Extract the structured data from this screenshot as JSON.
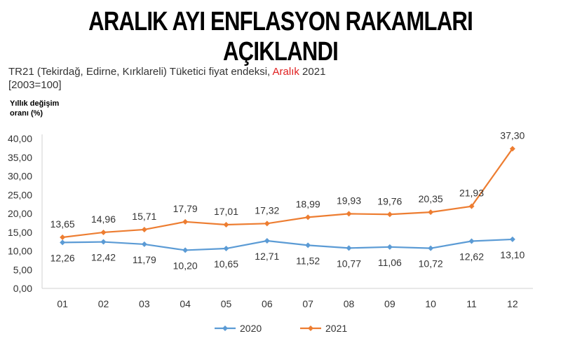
{
  "headline": "ARALIK AYI ENFLASYON RAKAMLARI AÇIKLANDI",
  "chart_data": {
    "type": "line",
    "title_prefix": "TR21 (Tekirdağ, Edirne, Kırklareli) Tüketici fiyat endeksi, ",
    "title_accent": "Aralık",
    "title_suffix": " 2021",
    "title_note": "[2003=100]",
    "ylabel": "Yıllık değişim oranı (%)",
    "xlabel": "",
    "categories": [
      "01",
      "02",
      "03",
      "04",
      "05",
      "06",
      "07",
      "08",
      "09",
      "10",
      "11",
      "12"
    ],
    "ylim": [
      0,
      40
    ],
    "yticks": [
      0,
      5,
      10,
      15,
      20,
      25,
      30,
      35,
      40
    ],
    "ytick_labels": [
      "0,00",
      "5,00",
      "10,00",
      "15,00",
      "20,00",
      "25,00",
      "30,00",
      "35,00",
      "40,00"
    ],
    "legend_position": "bottom",
    "series": [
      {
        "name": "2020",
        "color": "#5b9bd5",
        "values": [
          12.26,
          12.42,
          11.79,
          10.2,
          10.65,
          12.71,
          11.52,
          10.77,
          11.06,
          10.72,
          12.62,
          13.1
        ],
        "labels": [
          "12,26",
          "12,42",
          "11,79",
          "10,20",
          "10,65",
          "12,71",
          "11,52",
          "10,77",
          "11,06",
          "10,72",
          "12,62",
          "13,10"
        ],
        "label_position": "below"
      },
      {
        "name": "2021",
        "color": "#ed7d31",
        "values": [
          13.65,
          14.96,
          15.71,
          17.79,
          17.01,
          17.32,
          18.99,
          19.93,
          19.76,
          20.35,
          21.93,
          37.3
        ],
        "labels": [
          "13,65",
          "14,96",
          "15,71",
          "17,79",
          "17,01",
          "17,32",
          "18,99",
          "19,93",
          "19,76",
          "20,35",
          "21,93",
          "37,30"
        ],
        "label_position": "above"
      }
    ]
  }
}
